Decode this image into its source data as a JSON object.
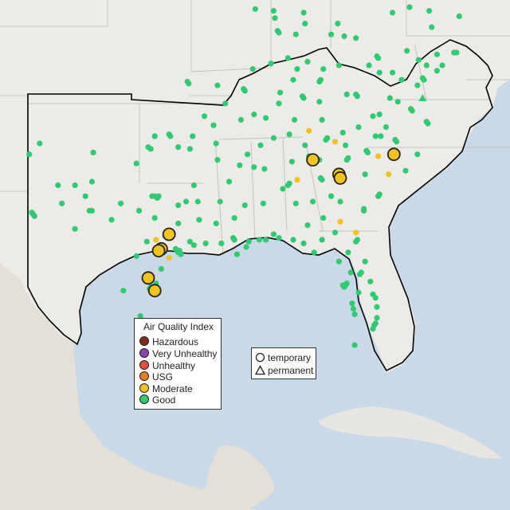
{
  "colors": {
    "water": "#c9d9e8",
    "land": "#ecebe8",
    "land_mexico": "#e4e0d8",
    "land_cuba": "#e8e6e2",
    "state_border": "#c4c4c4",
    "region_border": "#000000",
    "hazardous": "#7e2a1e",
    "very_unhealthy": "#8e44ad",
    "unhealthy": "#e74c3c",
    "usg": "#e67e22",
    "moderate": "#f2c318",
    "good": "#2ecc71"
  },
  "legend": {
    "title": "Air Quality Index",
    "items": [
      {
        "label": "Hazardous",
        "color": "#7e2a1e"
      },
      {
        "label": "Very Unhealthy",
        "color": "#8e44ad"
      },
      {
        "label": "Unhealthy",
        "color": "#e74c3c"
      },
      {
        "label": "USG",
        "color": "#e67e22"
      },
      {
        "label": "Moderate",
        "color": "#f2c318"
      },
      {
        "label": "Good",
        "color": "#2ecc71"
      }
    ]
  },
  "monitor_types": {
    "temporary": "temporary",
    "permanent": "permanent"
  },
  "monitors": {
    "good": [
      [
        -97.6,
        35.5
      ],
      [
        -97.4,
        35.4
      ],
      [
        -95.9,
        36.1
      ],
      [
        -96.0,
        36.2
      ],
      [
        -97.1,
        36.1
      ],
      [
        -98.5,
        34.6
      ],
      [
        -95.3,
        35.5
      ],
      [
        -94.4,
        35.4
      ],
      [
        -94.2,
        36.1
      ],
      [
        -92.3,
        34.8
      ],
      [
        -90.0,
        35.1
      ],
      [
        -86.8,
        36.2
      ],
      [
        -85.3,
        35.0
      ],
      [
        -84.0,
        35.9
      ],
      [
        -83.9,
        36.0
      ],
      [
        -84.4,
        33.8
      ],
      [
        -84.3,
        33.7
      ],
      [
        -86.8,
        33.5
      ],
      [
        -86.9,
        33.4
      ],
      [
        -88.0,
        30.7
      ],
      [
        -90.1,
        30.0
      ],
      [
        -91.1,
        30.5
      ],
      [
        -93.2,
        30.2
      ],
      [
        -94.1,
        30.1
      ],
      [
        -95.4,
        29.8
      ],
      [
        -95.3,
        29.7
      ],
      [
        -95.1,
        29.6
      ],
      [
        -95.2,
        29.8
      ],
      [
        -95.5,
        29.9
      ],
      [
        -97.7,
        30.3
      ],
      [
        -98.5,
        29.5
      ],
      [
        -97.4,
        27.8
      ],
      [
        -97.5,
        27.7
      ],
      [
        -97.5,
        25.9
      ],
      [
        -96.8,
        32.8
      ],
      [
        -97.1,
        32.8
      ],
      [
        -96.9,
        32.7
      ],
      [
        -97.3,
        32.8
      ],
      [
        -94.7,
        32.5
      ],
      [
        -95.3,
        32.3
      ],
      [
        -101.8,
        35.2
      ],
      [
        -102.1,
        32.0
      ],
      [
        -101.9,
        33.6
      ],
      [
        -106.4,
        31.8
      ],
      [
        -106.5,
        31.9
      ],
      [
        -106.3,
        31.7
      ],
      [
        -93.8,
        32.5
      ],
      [
        -92.1,
        32.5
      ],
      [
        -91.0,
        30.4
      ],
      [
        -90.2,
        32.3
      ],
      [
        -89.1,
        30.4
      ],
      [
        -88.6,
        30.4
      ],
      [
        -87.6,
        30.5
      ],
      [
        -86.5,
        30.4
      ],
      [
        -85.7,
        30.2
      ],
      [
        -84.3,
        30.4
      ],
      [
        -82.3,
        29.7
      ],
      [
        -81.4,
        28.5
      ],
      [
        -81.3,
        28.6
      ],
      [
        -82.5,
        27.9
      ],
      [
        -82.6,
        27.8
      ],
      [
        -82.4,
        28.0
      ],
      [
        -82.7,
        27.9
      ],
      [
        -81.9,
        26.6
      ],
      [
        -81.8,
        26.3
      ],
      [
        -80.2,
        25.8
      ],
      [
        -80.1,
        26.1
      ],
      [
        -80.3,
        25.7
      ],
      [
        -80.1,
        26.7
      ],
      [
        -80.4,
        25.5
      ],
      [
        -81.7,
        30.3
      ],
      [
        -81.6,
        30.4
      ],
      [
        -81.1,
        32.1
      ],
      [
        -80.0,
        32.8
      ],
      [
        -79.9,
        32.9
      ],
      [
        -81.0,
        34.0
      ],
      [
        -82.4,
        34.8
      ],
      [
        -82.3,
        34.9
      ],
      [
        -80.8,
        35.2
      ],
      [
        -80.9,
        35.3
      ],
      [
        -80.2,
        36.1
      ],
      [
        -79.8,
        36.1
      ],
      [
        -78.6,
        35.8
      ],
      [
        -78.7,
        35.9
      ],
      [
        -77.9,
        34.2
      ],
      [
        -77.0,
        35.1
      ],
      [
        -76.3,
        36.9
      ],
      [
        -76.2,
        36.8
      ],
      [
        -77.4,
        37.5
      ],
      [
        -77.5,
        37.6
      ],
      [
        -79.9,
        37.3
      ],
      [
        -78.5,
        38.0
      ],
      [
        -79.4,
        36.6
      ],
      [
        -81.6,
        38.3
      ],
      [
        -81.7,
        38.4
      ],
      [
        -82.4,
        38.4
      ],
      [
        -80.7,
        40.0
      ],
      [
        -79.9,
        39.6
      ],
      [
        -78.9,
        39.6
      ],
      [
        -77.0,
        38.9
      ],
      [
        -76.6,
        39.3
      ],
      [
        -76.5,
        39.2
      ],
      [
        -75.5,
        39.7
      ],
      [
        -75.1,
        40.0
      ],
      [
        -74.2,
        40.7
      ],
      [
        -74.0,
        40.7
      ],
      [
        -85.7,
        38.2
      ],
      [
        -85.8,
        38.3
      ],
      [
        -84.5,
        38.0
      ],
      [
        -84.5,
        39.1
      ],
      [
        -84.4,
        39.2
      ],
      [
        -86.2,
        39.8
      ],
      [
        -87.6,
        41.8
      ],
      [
        -87.7,
        41.9
      ],
      [
        -83.0,
        40.0
      ],
      [
        -81.7,
        41.5
      ],
      [
        -82.6,
        41.6
      ],
      [
        -88.2,
        40.1
      ],
      [
        -89.6,
        39.8
      ],
      [
        -90.2,
        38.6
      ],
      [
        -90.3,
        38.7
      ],
      [
        -92.3,
        38.9
      ],
      [
        -94.6,
        39.1
      ],
      [
        -94.5,
        39.0
      ],
      [
        -93.3,
        37.2
      ],
      [
        -91.7,
        37.9
      ],
      [
        -89.5,
        37.3
      ],
      [
        -88.6,
        37.1
      ],
      [
        -87.6,
        37.9
      ],
      [
        -86.5,
        39.2
      ],
      [
        -85.4,
        40.2
      ],
      [
        -86.9,
        40.4
      ],
      [
        -84.2,
        39.8
      ],
      [
        -80.0,
        40.4
      ],
      [
        -80.1,
        40.5
      ],
      [
        -77.8,
        40.8
      ],
      [
        -76.9,
        40.3
      ],
      [
        -75.5,
        40.6
      ],
      [
        -76.3,
        40.0
      ],
      [
        -83.1,
        42.3
      ],
      [
        -83.6,
        41.7
      ],
      [
        -85.6,
        42.3
      ],
      [
        -86.3,
        41.7
      ],
      [
        -85.7,
        42.9
      ],
      [
        -88.0,
        43.0
      ],
      [
        -89.4,
        43.1
      ],
      [
        -87.9,
        42.6
      ],
      [
        -78.9,
        42.9
      ],
      [
        -77.6,
        43.2
      ],
      [
        -76.1,
        43.0
      ],
      [
        -73.8,
        42.7
      ],
      [
        -75.9,
        42.1
      ],
      [
        -79.1,
        38.2
      ],
      [
        -78.2,
        39.2
      ],
      [
        -86.6,
        34.7
      ],
      [
        -86.3,
        32.4
      ],
      [
        -85.0,
        32.5
      ],
      [
        -83.6,
        32.8
      ],
      [
        -81.1,
        32.0
      ],
      [
        -82.9,
        32.5
      ],
      [
        -84.2,
        31.6
      ],
      [
        -83.3,
        30.8
      ],
      [
        -85.4,
        31.2
      ],
      [
        -87.3,
        33.2
      ],
      [
        -88.7,
        34.3
      ],
      [
        -89.5,
        34.4
      ],
      [
        -88.8,
        32.4
      ],
      [
        -91.0,
        31.6
      ],
      [
        -92.4,
        31.3
      ],
      [
        -93.7,
        31.5
      ],
      [
        -95.3,
        31.3
      ],
      [
        -96.3,
        30.6
      ],
      [
        -97.1,
        31.6
      ],
      [
        -98.3,
        32.0
      ],
      [
        -99.7,
        32.4
      ],
      [
        -100.4,
        31.5
      ],
      [
        -101.9,
        32.0
      ],
      [
        -103.2,
        33.4
      ],
      [
        -104.5,
        33.4
      ],
      [
        -106.7,
        35.1
      ],
      [
        -105.9,
        35.7
      ],
      [
        -104.2,
        32.4
      ],
      [
        -103.2,
        31.0
      ],
      [
        -102.4,
        32.8
      ],
      [
        -99.5,
        27.6
      ],
      [
        -98.2,
        26.2
      ],
      [
        -96.6,
        28.8
      ],
      [
        -97.0,
        28.0
      ],
      [
        -94.4,
        30.3
      ],
      [
        -92.0,
        30.2
      ],
      [
        -90.8,
        29.6
      ],
      [
        -89.9,
        30.3
      ],
      [
        -84.9,
        29.7
      ],
      [
        -83.0,
        29.2
      ],
      [
        -82.1,
        28.6
      ],
      [
        -81.0,
        29.2
      ],
      [
        -80.6,
        28.1
      ],
      [
        -80.4,
        27.4
      ],
      [
        -81.5,
        27.5
      ],
      [
        -82.0,
        26.9
      ],
      [
        -80.2,
        27.2
      ],
      [
        -81.8,
        24.6
      ],
      [
        -84.5,
        34.8
      ],
      [
        -85.6,
        35.6
      ],
      [
        -82.5,
        35.6
      ],
      [
        -82.7,
        36.3
      ],
      [
        -81.5,
        36.6
      ],
      [
        -80.4,
        37.2
      ],
      [
        -84.3,
        37.0
      ],
      [
        -86.4,
        37.0
      ],
      [
        -88.0,
        36.0
      ],
      [
        -89.0,
        35.6
      ],
      [
        -87.5,
        38.5
      ],
      [
        -90.6,
        34.5
      ],
      [
        -91.4,
        33.6
      ],
      [
        -92.4,
        35.7
      ],
      [
        -94.1,
        33.4
      ],
      [
        -90.5,
        37.0
      ],
      [
        -92.6,
        36.7
      ]
    ],
    "moderate": [
      [
        -83.3,
        35.8
      ],
      [
        -85.3,
        36.4
      ],
      [
        -80.0,
        35.0
      ],
      [
        -79.2,
        34.0
      ],
      [
        -86.2,
        33.7
      ],
      [
        -82.9,
        31.4
      ],
      [
        -81.7,
        30.8
      ],
      [
        -97.0,
        30.4
      ],
      [
        -96.0,
        29.4
      ]
    ],
    "moderate_large": [
      [
        -85.0,
        34.8
      ],
      [
        -83.0,
        34.0
      ],
      [
        -82.9,
        33.8
      ],
      [
        -78.8,
        35.1
      ],
      [
        -96.0,
        30.7
      ],
      [
        -96.6,
        29.9
      ],
      [
        -96.8,
        29.8
      ],
      [
        -97.6,
        28.3
      ],
      [
        -97.1,
        27.6
      ]
    ],
    "permanent_good": [
      [
        -76.6,
        38.2
      ]
    ]
  }
}
